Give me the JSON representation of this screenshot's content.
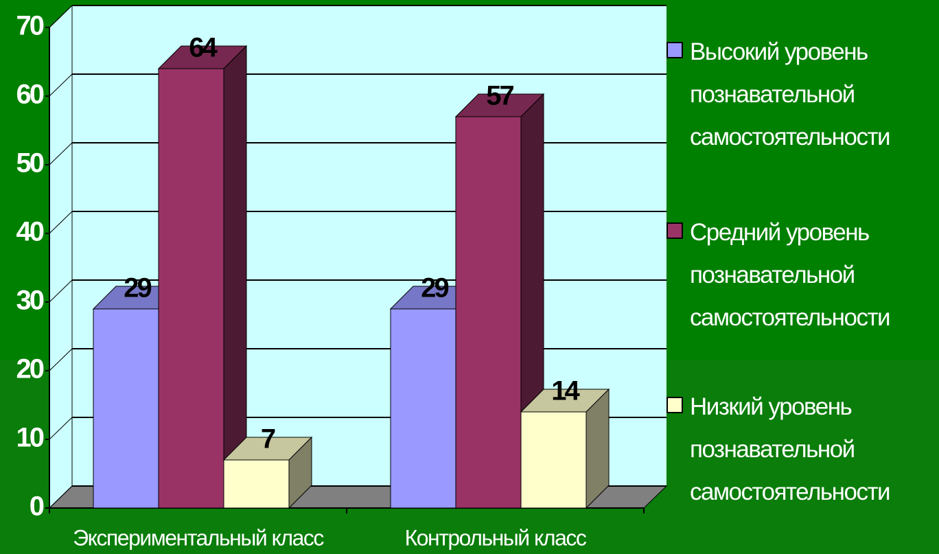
{
  "chart_data": {
    "type": "bar3d",
    "categories": [
      "Экспериментальный класс",
      "Контрольный класс"
    ],
    "series": [
      {
        "name": "Высокий уровень познавательной самостоятельности",
        "color": "#9999ff",
        "values": [
          29,
          29
        ]
      },
      {
        "name": "Средний уровень познавательной самостоятельности",
        "color": "#993366",
        "values": [
          64,
          57
        ]
      },
      {
        "name": "Низкий уровень познавательной самостоятельности",
        "color": "#ffffcc",
        "values": [
          7,
          14
        ]
      }
    ],
    "ylim": [
      0,
      70
    ],
    "yticks": [
      0,
      10,
      20,
      30,
      40,
      50,
      60,
      70
    ],
    "grid": true,
    "legend": "right"
  }
}
